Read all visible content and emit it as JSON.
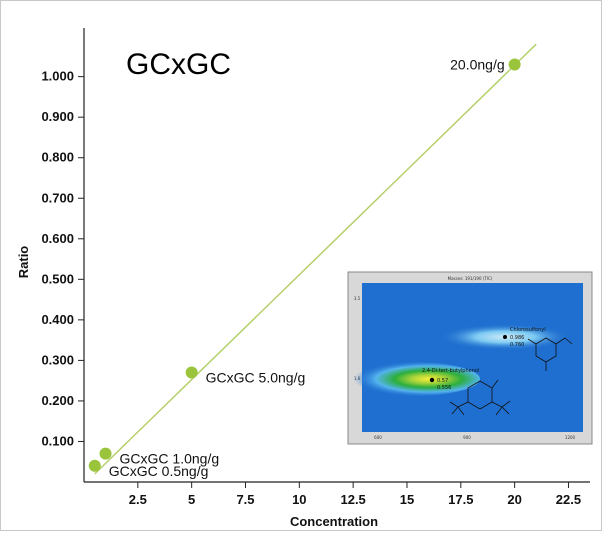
{
  "chart_data": {
    "type": "scatter",
    "title": "GCxGC",
    "xlabel": "Concentration",
    "ylabel": "Ratio",
    "xlim": [
      0,
      23.5
    ],
    "ylim": [
      0,
      1.12
    ],
    "x_ticks": [
      2.5,
      5,
      7.5,
      10,
      12.5,
      15,
      17.5,
      20,
      22.5
    ],
    "x_tick_labels": [
      "2.5",
      "5",
      "7.5",
      "10",
      "12.5",
      "15",
      "17.5",
      "20",
      "22.5"
    ],
    "y_ticks": [
      0.1,
      0.2,
      0.3,
      0.4,
      0.5,
      0.6,
      0.7,
      0.8,
      0.9,
      1.0
    ],
    "y_tick_labels": [
      "0.100",
      "0.200",
      "0.300",
      "0.400",
      "0.500",
      "0.600",
      "0.700",
      "0.800",
      "0.900",
      "1.000"
    ],
    "grid": false,
    "points": [
      {
        "x": 0.5,
        "y": 0.04,
        "label": "GCxGC 0.5ng/g"
      },
      {
        "x": 1.0,
        "y": 0.07,
        "label": "GCxGC 1.0ng/g"
      },
      {
        "x": 5.0,
        "y": 0.27,
        "label": "GCxGC 5.0ng/g"
      },
      {
        "x": 20.0,
        "y": 1.03,
        "label": "20.0ng/g"
      }
    ],
    "trendline": {
      "x": [
        0.5,
        21.0
      ],
      "y": [
        0.02,
        1.08
      ]
    },
    "colors": {
      "point": "#9ac43c",
      "line": "#b5cf6a"
    }
  },
  "inset": {
    "title": "Masses: 191/190 (TIC)",
    "y_ticks": [
      "3.5",
      "1.8"
    ],
    "x_ticks": [
      "600",
      "900",
      "1200"
    ],
    "peak1": {
      "name": "Chlorosulfonyl",
      "line2": "0.986",
      "line3": "0.760"
    },
    "peak2": {
      "name": "2,4-Di-tert-butylphenol",
      "line2": "0.57",
      "line3": "0.556"
    },
    "colors": {
      "background": "#1f6fd0",
      "halo": "#54b4ee",
      "core": "#2cae3d",
      "hot": "#f0e63a"
    }
  }
}
